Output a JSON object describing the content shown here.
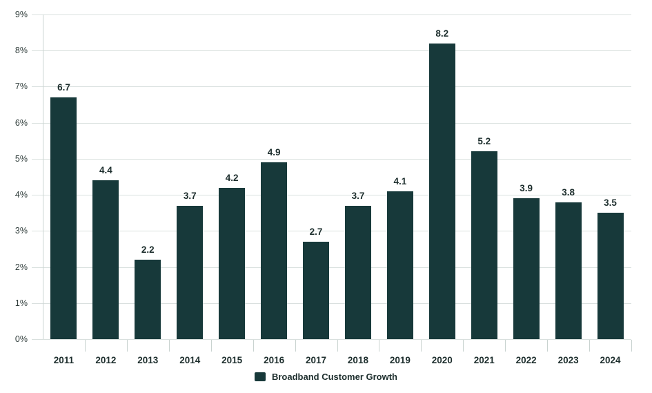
{
  "chart_data": {
    "type": "bar",
    "title": "",
    "xlabel": "",
    "ylabel": "",
    "categories": [
      "2011",
      "2012",
      "2013",
      "2014",
      "2015",
      "2016",
      "2017",
      "2018",
      "2019",
      "2020",
      "2021",
      "2022",
      "2023",
      "2024"
    ],
    "values": [
      6.7,
      4.4,
      2.2,
      3.7,
      4.2,
      4.9,
      2.7,
      3.7,
      4.1,
      8.2,
      5.2,
      3.9,
      3.8,
      3.5
    ],
    "value_labels": [
      "6.7",
      "4.4",
      "2.2",
      "3.7",
      "4.2",
      "4.9",
      "2.7",
      "3.7",
      "4.1",
      "8.2",
      "5.2",
      "3.9",
      "3.8",
      "3.5"
    ],
    "y_tick_labels": [
      "0%",
      "1%",
      "2%",
      "3%",
      "4%",
      "5%",
      "6%",
      "7%",
      "8%",
      "9%"
    ],
    "ylim": [
      0,
      9
    ],
    "grid": "horizontal",
    "legend": {
      "position": "bottom-center",
      "entries": [
        {
          "label": "Broadband Customer Growth",
          "swatch_color": "#17393a"
        }
      ]
    }
  },
  "colors": {
    "bar": "#17393a",
    "gridline": "#d9e0de",
    "axis": "#c9d3d0",
    "value_text": "#1d2e2d",
    "axis_text": "#2f3c3a",
    "background": "#ffffff"
  }
}
